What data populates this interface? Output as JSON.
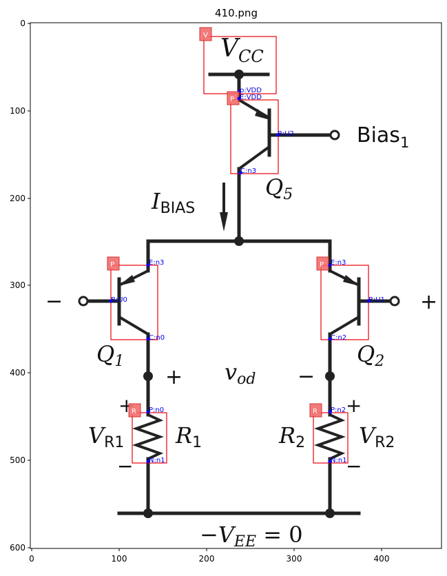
{
  "figure": {
    "title": "410.png",
    "x_ticks": [
      "0",
      "100",
      "200",
      "300",
      "400"
    ],
    "y_ticks": [
      "0",
      "100",
      "200",
      "300",
      "400",
      "500",
      "600"
    ]
  },
  "circuit": {
    "labels": {
      "vcc": "V",
      "vcc_sub": "CC",
      "bias": "Bias",
      "bias_sub": "1",
      "ibias": "I",
      "ibias_sub": "BIAS",
      "q5": "Q",
      "q5_sub": "5",
      "q1": "Q",
      "q1_sub": "1",
      "q2": "Q",
      "q2_sub": "2",
      "vod": "v",
      "vod_sub": "od",
      "vr1": "V",
      "vr1_sub": "R1",
      "vr2": "V",
      "vr2_sub": "R2",
      "r1": "R",
      "r1_sub": "1",
      "r2": "R",
      "r2_sub": "2",
      "vee": "−V",
      "vee_sub": "EE",
      "vee_eq": " = 0",
      "minus_in": "−",
      "plus_in": "+",
      "plus_q1": "+",
      "minus_q2": "−",
      "plus_r1": "+",
      "minus_r1": "−",
      "plus_r2": "+",
      "minus_r2": "−"
    },
    "annotations": [
      {
        "tag": "V",
        "pins": [
          "p:VDD"
        ]
      },
      {
        "tag": "P",
        "pins": [
          "E:VDD",
          "B:U2",
          "C:n3"
        ]
      },
      {
        "tag": "P",
        "pins": [
          "E:n3",
          "B:U0",
          "C:n0"
        ]
      },
      {
        "tag": "P",
        "pins": [
          "E:n3",
          "B:U1",
          "C:n2"
        ]
      },
      {
        "tag": "R",
        "pins": [
          "P:n0",
          "N:n1"
        ]
      },
      {
        "tag": "R",
        "pins": [
          "P:n2",
          "N:n1"
        ]
      }
    ]
  }
}
